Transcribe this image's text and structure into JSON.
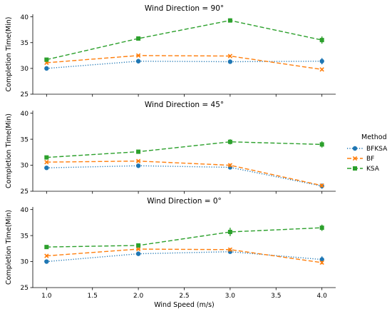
{
  "chart_data": {
    "type": "line",
    "xlabel": "Wind Speed (m/s)",
    "ylabel": "Completion Time(Min)",
    "x": [
      1.0,
      2.0,
      3.0,
      4.0
    ],
    "xticks": [
      "1.0",
      "1.5",
      "2.0",
      "2.5",
      "3.0",
      "3.5",
      "4.0"
    ],
    "xtick_values": [
      1.0,
      1.5,
      2.0,
      2.5,
      3.0,
      3.5,
      4.0
    ],
    "xlim": [
      0.85,
      4.15
    ],
    "ylim": [
      25,
      40.5
    ],
    "yticks": [
      "25",
      "30",
      "35",
      "40"
    ],
    "ytick_values": [
      25,
      30,
      35,
      40
    ],
    "legend": {
      "title": "Method",
      "placement": "right",
      "entries": [
        {
          "name": "BFKSA",
          "color": "#1f77b4",
          "marker": "circle",
          "dash": "dotted"
        },
        {
          "name": "BF",
          "color": "#ff7f0e",
          "marker": "x",
          "dash": "dashed"
        },
        {
          "name": "KSA",
          "color": "#2ca02c",
          "marker": "square",
          "dash": "dashed"
        }
      ]
    },
    "panels": [
      {
        "title": "Wind Direction = 90°",
        "series": [
          {
            "name": "BFKSA",
            "values": [
              30.0,
              31.4,
              31.3,
              31.4
            ],
            "err": [
              0.2,
              0.3,
              0.2,
              0.6
            ]
          },
          {
            "name": "BF",
            "values": [
              31.1,
              32.5,
              32.4,
              29.8
            ],
            "err": [
              0.2,
              0.2,
              0.2,
              0.2
            ]
          },
          {
            "name": "KSA",
            "values": [
              31.7,
              35.8,
              39.3,
              35.5
            ],
            "err": [
              0.3,
              0.3,
              0.4,
              0.7
            ]
          }
        ]
      },
      {
        "title": "Wind Direction = 45°",
        "series": [
          {
            "name": "BFKSA",
            "values": [
              29.5,
              29.9,
              29.6,
              26.0
            ],
            "err": [
              0.2,
              0.3,
              0.3,
              0.5
            ]
          },
          {
            "name": "BF",
            "values": [
              30.6,
              30.8,
              30.0,
              26.1
            ],
            "err": [
              0.2,
              0.2,
              0.3,
              0.3
            ]
          },
          {
            "name": "KSA",
            "values": [
              31.5,
              32.6,
              34.5,
              34.0
            ],
            "err": [
              0.3,
              0.3,
              0.5,
              0.6
            ]
          }
        ]
      },
      {
        "title": "Wind Direction = 0°",
        "series": [
          {
            "name": "BFKSA",
            "values": [
              30.0,
              31.5,
              31.9,
              30.4
            ],
            "err": [
              0.2,
              0.3,
              0.3,
              0.6
            ]
          },
          {
            "name": "BF",
            "values": [
              31.1,
              32.4,
              32.3,
              29.8
            ],
            "err": [
              0.2,
              0.2,
              0.3,
              0.3
            ]
          },
          {
            "name": "KSA",
            "values": [
              32.8,
              33.1,
              35.7,
              36.5
            ],
            "err": [
              0.3,
              0.3,
              0.8,
              0.6
            ]
          }
        ]
      }
    ]
  }
}
